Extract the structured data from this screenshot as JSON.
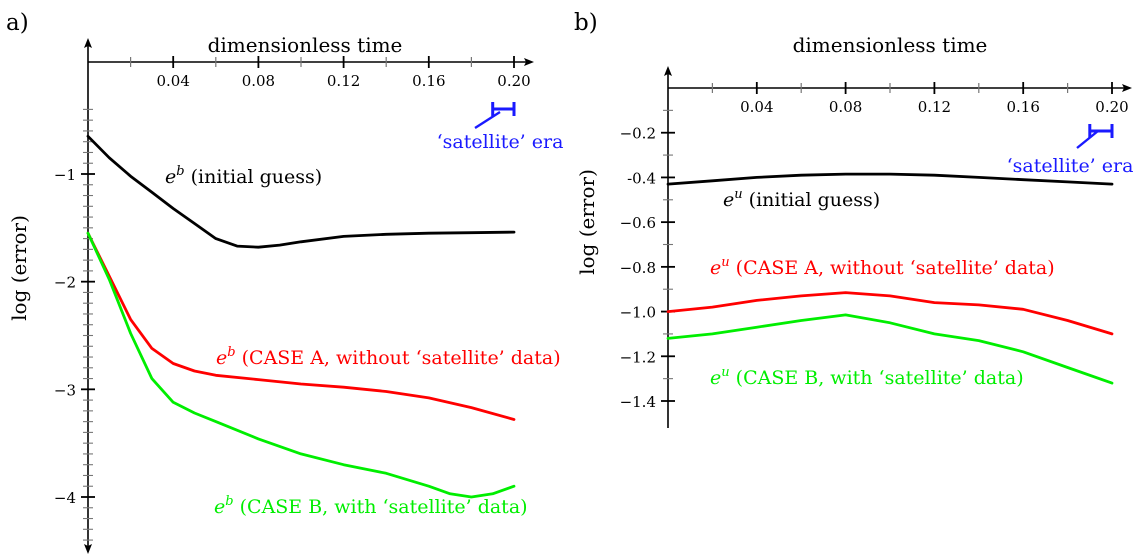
{
  "chart_data": [
    {
      "panel": "a)",
      "type": "line",
      "xlabel": "dimensionless time",
      "ylabel": "log (error)",
      "xlim": [
        0,
        0.2
      ],
      "ylim": [
        -4.5,
        -0.3
      ],
      "xticks": [
        "0.04",
        "0.08",
        "0.12",
        "0.16",
        "0.20"
      ],
      "yticks": [
        "−1",
        "−2",
        "−3",
        "−4"
      ],
      "grid": false,
      "era_label": "‘satellite’ era",
      "era_range": [
        0.19,
        0.2
      ],
      "series": [
        {
          "prefix": "e",
          "sup": "b",
          "suffix": " (initial guess)",
          "color": "#000000",
          "x": [
            0,
            0.01,
            0.02,
            0.03,
            0.04,
            0.05,
            0.06,
            0.07,
            0.08,
            0.09,
            0.1,
            0.12,
            0.14,
            0.16,
            0.18,
            0.2
          ],
          "y": [
            -0.65,
            -0.85,
            -1.02,
            -1.17,
            -1.32,
            -1.46,
            -1.6,
            -1.67,
            -1.68,
            -1.66,
            -1.63,
            -1.58,
            -1.56,
            -1.55,
            -1.545,
            -1.54
          ]
        },
        {
          "prefix": "e",
          "sup": "b",
          "suffix": " (CASE A, without ‘satellite’ data)",
          "color": "#ff0000",
          "x": [
            0,
            0.01,
            0.02,
            0.03,
            0.04,
            0.05,
            0.06,
            0.08,
            0.1,
            0.12,
            0.14,
            0.16,
            0.18,
            0.2
          ],
          "y": [
            -1.55,
            -1.95,
            -2.35,
            -2.62,
            -2.76,
            -2.83,
            -2.87,
            -2.91,
            -2.95,
            -2.98,
            -3.02,
            -3.08,
            -3.17,
            -3.28
          ]
        },
        {
          "prefix": "e",
          "sup": "b",
          "suffix": " (CASE B, with ‘satellite’ data)",
          "color": "#00ee00",
          "x": [
            0,
            0.01,
            0.02,
            0.03,
            0.04,
            0.05,
            0.06,
            0.08,
            0.1,
            0.12,
            0.14,
            0.16,
            0.17,
            0.18,
            0.19,
            0.2
          ],
          "y": [
            -1.55,
            -1.98,
            -2.48,
            -2.9,
            -3.12,
            -3.22,
            -3.3,
            -3.46,
            -3.6,
            -3.7,
            -3.78,
            -3.9,
            -3.97,
            -4.0,
            -3.97,
            -3.9
          ]
        }
      ]
    },
    {
      "panel": "b)",
      "type": "line",
      "xlabel": "dimensionless time",
      "ylabel": "log (error)",
      "xlim": [
        0,
        0.2
      ],
      "ylim": [
        -1.5,
        0
      ],
      "xticks": [
        "0.04",
        "0.08",
        "0.12",
        "0.16",
        "0.20"
      ],
      "yticks": [
        "−0.2",
        "-0.4",
        "−0.6",
        "−0.8",
        "−1.0",
        "−1.2",
        "−1.4"
      ],
      "grid": false,
      "era_label": "‘satellite’ era",
      "era_range": [
        0.19,
        0.2
      ],
      "series": [
        {
          "prefix": "e",
          "sup": "u",
          "suffix": " (initial guess)",
          "color": "#000000",
          "x": [
            0,
            0.02,
            0.04,
            0.06,
            0.08,
            0.1,
            0.12,
            0.14,
            0.16,
            0.18,
            0.2
          ],
          "y": [
            -0.43,
            -0.415,
            -0.4,
            -0.39,
            -0.385,
            -0.385,
            -0.39,
            -0.4,
            -0.41,
            -0.42,
            -0.43
          ]
        },
        {
          "prefix": "e",
          "sup": "u",
          "suffix": " (CASE A, without ‘satellite’ data)",
          "color": "#ff0000",
          "x": [
            0,
            0.02,
            0.04,
            0.06,
            0.08,
            0.1,
            0.12,
            0.14,
            0.16,
            0.18,
            0.2
          ],
          "y": [
            -1.0,
            -0.98,
            -0.95,
            -0.93,
            -0.915,
            -0.93,
            -0.96,
            -0.97,
            -0.99,
            -1.04,
            -1.1
          ]
        },
        {
          "prefix": "e",
          "sup": "u",
          "suffix": " (CASE B, with ‘satellite’ data)",
          "color": "#00ee00",
          "x": [
            0,
            0.02,
            0.04,
            0.06,
            0.08,
            0.1,
            0.12,
            0.14,
            0.16,
            0.18,
            0.2
          ],
          "y": [
            -1.12,
            -1.1,
            -1.07,
            -1.04,
            -1.015,
            -1.05,
            -1.1,
            -1.13,
            -1.18,
            -1.25,
            -1.32
          ]
        }
      ]
    }
  ],
  "colors": {
    "era": "#1a1aff",
    "axis": "#000000",
    "minor_tick": "#777777"
  }
}
